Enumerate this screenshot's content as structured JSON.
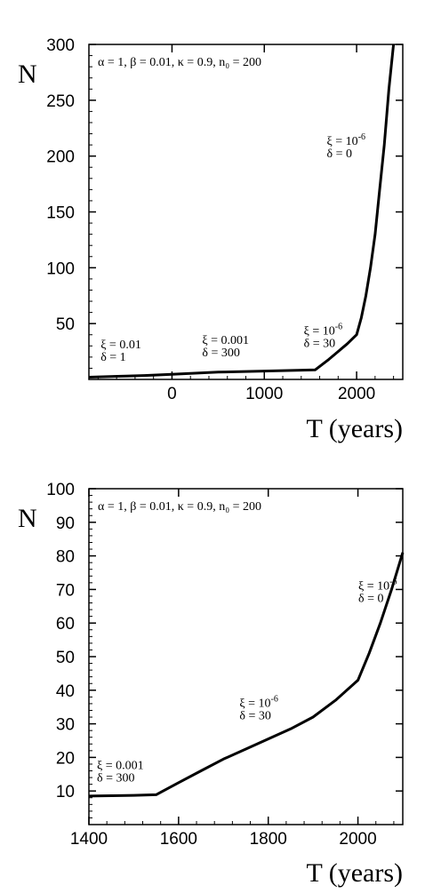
{
  "chart_data": [
    {
      "type": "line",
      "xlabel": "T (years)",
      "ylabel": "N",
      "xlim": [
        -900,
        2500
      ],
      "ylim": [
        0,
        300
      ],
      "xticks": [
        "0",
        "1000",
        "2000"
      ],
      "xtick_values": [
        0,
        1000,
        2000
      ],
      "yticks": [
        "50",
        "100",
        "150",
        "200",
        "250",
        "300"
      ],
      "ytick_values": [
        50,
        100,
        150,
        200,
        250,
        300
      ],
      "params": "α = 1, β = 0.01, κ = 0.9, n₀ = 200",
      "series": [
        {
          "x": [
            -900,
            -500,
            -300,
            0,
            500,
            1000,
            1300,
            1550,
            1700,
            1800,
            1900,
            2000,
            2050,
            2100,
            2150,
            2200,
            2250,
            2300,
            2350,
            2400
          ],
          "y": [
            2,
            3,
            3.5,
            4.5,
            6.5,
            7.5,
            8,
            8.5,
            18,
            25,
            32,
            40,
            55,
            75,
            100,
            130,
            170,
            210,
            260,
            300
          ]
        }
      ],
      "annotations": [
        {
          "xi": "ξ = 0.01",
          "delta": "δ = 1",
          "x": -850,
          "y": 28
        },
        {
          "xi": "ξ = 0.001",
          "delta": "δ = 300",
          "x": 250,
          "y": 32
        },
        {
          "xi": "ξ = 10",
          "xi_exp": "-6",
          "delta": "δ = 30",
          "x": 1350,
          "y": 40
        },
        {
          "xi": "ξ = 10",
          "xi_exp": "-6",
          "delta": "δ = 0",
          "x": 1600,
          "y": 210
        }
      ]
    },
    {
      "type": "line",
      "xlabel": "T (years)",
      "ylabel": "N",
      "xlim": [
        1400,
        2100
      ],
      "ylim": [
        0,
        100
      ],
      "xticks": [
        "1400",
        "1600",
        "1800",
        "2000"
      ],
      "xtick_values": [
        1400,
        1600,
        1800,
        2000
      ],
      "yticks": [
        "10",
        "20",
        "30",
        "40",
        "50",
        "60",
        "70",
        "80",
        "90",
        "100"
      ],
      "ytick_values": [
        10,
        20,
        30,
        40,
        50,
        60,
        70,
        80,
        90,
        100
      ],
      "params": "α = 1, β = 0.01, κ = 0.9, n₀ = 200",
      "series": [
        {
          "x": [
            1400,
            1450,
            1500,
            1550,
            1600,
            1650,
            1700,
            1750,
            1800,
            1850,
            1900,
            1950,
            2000,
            2025,
            2050,
            2075,
            2100
          ],
          "y": [
            8.5,
            8.6,
            8.7,
            8.9,
            12.5,
            16,
            19.5,
            22.5,
            25.5,
            28.5,
            32,
            37,
            43,
            51,
            60,
            70,
            81
          ]
        }
      ],
      "annotations": [
        {
          "xi": "ξ = 0.001",
          "delta": "δ = 300",
          "x": 1402,
          "y": 16.5
        },
        {
          "xi": "ξ = 10",
          "xi_exp": "-6",
          "delta": "δ = 30",
          "x": 1720,
          "y": 35
        },
        {
          "xi": "ξ = 10",
          "xi_exp": "-6",
          "delta": "δ = 0",
          "x": 1985,
          "y": 70
        }
      ]
    }
  ]
}
